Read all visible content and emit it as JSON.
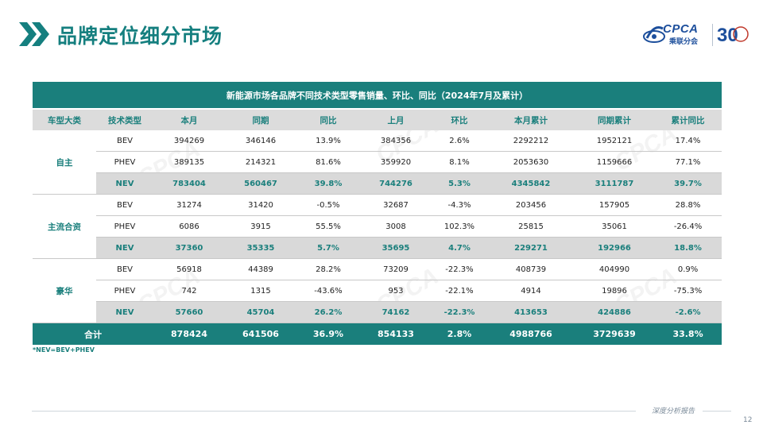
{
  "header": {
    "title": "品牌定位细分市场",
    "logo_text": "CPCA",
    "logo_subtext": "乘联分会",
    "anniversary_mark": "30"
  },
  "table": {
    "caption": "新能源市场各品牌不同技术类型零售销量、环比、同比（2024年7月及累计）",
    "columns": [
      "车型大类",
      "技术类型",
      "本月",
      "同期",
      "同比",
      "上月",
      "环比",
      "本月累计",
      "同期累计",
      "累计同比"
    ],
    "groups": [
      {
        "name": "自主",
        "rows": [
          {
            "tech": "BEV",
            "cells": [
              "394269",
              "346146",
              "13.9%",
              "384356",
              "2.6%",
              "2292212",
              "1952121",
              "17.4%"
            ]
          },
          {
            "tech": "PHEV",
            "cells": [
              "389135",
              "214321",
              "81.6%",
              "359920",
              "8.1%",
              "2053630",
              "1159666",
              "77.1%"
            ]
          },
          {
            "tech": "NEV",
            "cells": [
              "783404",
              "560467",
              "39.8%",
              "744276",
              "5.3%",
              "4345842",
              "3111787",
              "39.7%"
            ]
          }
        ]
      },
      {
        "name": "主流合资",
        "rows": [
          {
            "tech": "BEV",
            "cells": [
              "31274",
              "31420",
              "-0.5%",
              "32687",
              "-4.3%",
              "203456",
              "157905",
              "28.8%"
            ]
          },
          {
            "tech": "PHEV",
            "cells": [
              "6086",
              "3915",
              "55.5%",
              "3008",
              "102.3%",
              "25815",
              "35061",
              "-26.4%"
            ]
          },
          {
            "tech": "NEV",
            "cells": [
              "37360",
              "35335",
              "5.7%",
              "35695",
              "4.7%",
              "229271",
              "192966",
              "18.8%"
            ]
          }
        ]
      },
      {
        "name": "豪华",
        "rows": [
          {
            "tech": "BEV",
            "cells": [
              "56918",
              "44389",
              "28.2%",
              "73209",
              "-22.3%",
              "408739",
              "404990",
              "0.9%"
            ]
          },
          {
            "tech": "PHEV",
            "cells": [
              "742",
              "1315",
              "-43.6%",
              "953",
              "-22.1%",
              "4914",
              "19896",
              "-75.3%"
            ]
          },
          {
            "tech": "NEV",
            "cells": [
              "57660",
              "45704",
              "26.2%",
              "74162",
              "-22.3%",
              "413653",
              "424886",
              "-2.6%"
            ]
          }
        ]
      }
    ],
    "total": {
      "label": "合计",
      "cells": [
        "878424",
        "641506",
        "36.9%",
        "854133",
        "2.8%",
        "4988766",
        "3729639",
        "33.8%"
      ]
    },
    "footnote": "*NEV=BEV+PHEV"
  },
  "footer": {
    "text": "深度分析报告",
    "page_number": "12"
  },
  "colors": {
    "accent": "#1a7f7c",
    "header_bg": "#dcdcdc",
    "nev_row_bg": "#d9d9d9"
  }
}
